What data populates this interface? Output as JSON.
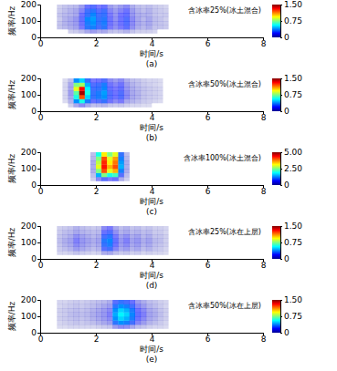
{
  "chart_data": [
    {
      "type": "heatmap",
      "annotation": "含冰率25%(冰土混合)",
      "label": "(a)",
      "xlabel": "时间/s",
      "ylabel": "频率/Hz",
      "xlim": [
        0,
        8
      ],
      "xticks": [
        0,
        2,
        4,
        6,
        8
      ],
      "ylim": [
        0,
        200
      ],
      "yticks": [
        0,
        100,
        200
      ],
      "x": [
        0.7,
        0.9,
        1.1,
        1.3,
        1.5,
        1.7,
        1.9,
        2.1,
        2.3,
        2.5,
        2.7,
        2.9,
        3.1,
        3.3,
        3.5,
        3.7,
        3.9,
        4.1,
        4.3,
        4.5
      ],
      "y": [
        37.5,
        62.5,
        87.5,
        112.5,
        137.5,
        162.5,
        187.5
      ],
      "z": [
        [
          0,
          0,
          0.03,
          0.04,
          0.06,
          0.1,
          0.12,
          0.09,
          0.1,
          0.06,
          0.05,
          0.06,
          0.08,
          0.05,
          0.03,
          0.03,
          0.03,
          0.02,
          0,
          0
        ],
        [
          0.05,
          0.07,
          0.09,
          0.11,
          0.18,
          0.32,
          0.36,
          0.27,
          0.32,
          0.18,
          0.14,
          0.18,
          0.23,
          0.14,
          0.09,
          0.07,
          0.09,
          0.05,
          0.05,
          0.04
        ],
        [
          0.05,
          0.08,
          0.1,
          0.12,
          0.2,
          0.35,
          0.4,
          0.3,
          0.35,
          0.2,
          0.15,
          0.2,
          0.25,
          0.15,
          0.1,
          0.08,
          0.1,
          0.06,
          0.05,
          0.04
        ],
        [
          0.04,
          0.08,
          0.1,
          0.13,
          0.22,
          0.38,
          0.42,
          0.3,
          0.33,
          0.2,
          0.14,
          0.2,
          0.25,
          0.15,
          0.1,
          0.07,
          0.1,
          0.06,
          0.05,
          0.03
        ],
        [
          0.05,
          0.07,
          0.08,
          0.1,
          0.2,
          0.3,
          0.38,
          0.28,
          0.3,
          0.18,
          0.13,
          0.19,
          0.22,
          0.13,
          0.09,
          0.08,
          0.08,
          0.05,
          0.04,
          0.04
        ],
        [
          0.04,
          0.06,
          0.08,
          0.1,
          0.16,
          0.28,
          0.32,
          0.24,
          0.28,
          0.16,
          0.12,
          0.16,
          0.2,
          0.12,
          0.08,
          0.06,
          0.08,
          0.05,
          0.04,
          0.03
        ],
        [
          0.03,
          0.05,
          0.06,
          0.07,
          0.12,
          0.21,
          0.24,
          0.18,
          0.21,
          0.12,
          0.09,
          0.12,
          0.15,
          0.09,
          0.06,
          0.05,
          0.06,
          0.04,
          0.03,
          0.02
        ]
      ],
      "colorbar_range": [
        0,
        1.5
      ],
      "colorbar_ticks": [
        0,
        0.75,
        {
          "value": 1.5,
          "label": "1.50"
        }
      ]
    },
    {
      "type": "heatmap",
      "annotation": "含冰率50%(冰土混合)",
      "label": "(b)",
      "xlabel": "时间/s",
      "ylabel": "频率/Hz",
      "xlim": [
        0,
        8
      ],
      "xticks": [
        0,
        2,
        4,
        6,
        8
      ],
      "ylim": [
        0,
        200
      ],
      "yticks": [
        0,
        100,
        200
      ],
      "x": [
        0.7,
        0.9,
        1.1,
        1.3,
        1.5,
        1.7,
        1.9,
        2.1,
        2.3,
        2.5,
        2.7,
        2.9,
        3.1,
        3.3,
        3.5,
        3.7,
        3.9,
        4.1,
        4.3,
        4.5
      ],
      "y": [
        37.5,
        62.5,
        87.5,
        112.5,
        137.5,
        162.5,
        187.5
      ],
      "z": [
        [
          0,
          0,
          0.03,
          0.1,
          0.15,
          0.1,
          0.06,
          0.07,
          0.08,
          0.05,
          0.04,
          0.05,
          0.03,
          0.02,
          0.02,
          0.01,
          0.01,
          0,
          0,
          0
        ],
        [
          0,
          0.01,
          0.08,
          0.4,
          0.6,
          0.35,
          0.22,
          0.25,
          0.3,
          0.2,
          0.15,
          0.18,
          0.1,
          0.08,
          0.06,
          0.04,
          0.03,
          0.02,
          0.01,
          0
        ],
        [
          0,
          0.02,
          0.1,
          0.6,
          1.2,
          0.5,
          0.3,
          0.35,
          0.4,
          0.25,
          0.2,
          0.25,
          0.15,
          0.1,
          0.08,
          0.05,
          0.04,
          0.03,
          0.02,
          0
        ],
        [
          0,
          0.02,
          0.12,
          0.7,
          1.45,
          0.6,
          0.3,
          0.35,
          0.42,
          0.25,
          0.2,
          0.25,
          0.15,
          0.1,
          0.08,
          0.05,
          0.04,
          0.03,
          0.02,
          0
        ],
        [
          0,
          0.02,
          0.1,
          0.9,
          1.3,
          0.55,
          0.28,
          0.3,
          0.38,
          0.22,
          0.18,
          0.22,
          0.13,
          0.09,
          0.07,
          0.05,
          0.04,
          0.03,
          0.02,
          0
        ],
        [
          0,
          0.02,
          0.1,
          0.75,
          0.8,
          0.45,
          0.25,
          0.28,
          0.35,
          0.2,
          0.16,
          0.2,
          0.12,
          0.08,
          0.06,
          0.04,
          0.03,
          0.02,
          0.01,
          0
        ],
        [
          0,
          0.01,
          0.06,
          0.4,
          0.5,
          0.3,
          0.18,
          0.2,
          0.25,
          0.15,
          0.12,
          0.15,
          0.09,
          0.06,
          0.05,
          0.03,
          0.02,
          0.02,
          0.01,
          0
        ]
      ],
      "colorbar_range": [
        0,
        1.5
      ],
      "colorbar_ticks": [
        0,
        0.75,
        {
          "value": 1.5,
          "label": "1.50"
        }
      ]
    },
    {
      "type": "heatmap",
      "annotation": "含冰率100%(冰土混合)",
      "label": "(c)",
      "xlabel": "时间/s",
      "ylabel": "频率/Hz",
      "xlim": [
        0,
        8
      ],
      "xticks": [
        0,
        2,
        4,
        6,
        8
      ],
      "ylim": [
        0,
        200
      ],
      "yticks": [
        0,
        100,
        200
      ],
      "x": [
        0.7,
        0.9,
        1.1,
        1.3,
        1.5,
        1.7,
        1.9,
        2.1,
        2.3,
        2.5,
        2.7,
        2.9,
        3.1,
        3.3,
        3.5,
        3.7,
        3.9,
        4.1,
        4.3,
        4.5
      ],
      "y": [
        37.5,
        62.5,
        87.5,
        112.5,
        137.5,
        162.5,
        187.5
      ],
      "z": [
        [
          0,
          0,
          0,
          0,
          0,
          0,
          0.1,
          0.5,
          0.8,
          0.6,
          0.7,
          0.3,
          0.1,
          0,
          0,
          0,
          0,
          0,
          0,
          0
        ],
        [
          0,
          0,
          0,
          0,
          0,
          0,
          0.2,
          1.5,
          2.5,
          2.0,
          2.2,
          0.8,
          0.2,
          0,
          0,
          0,
          0,
          0,
          0,
          0
        ],
        [
          0,
          0,
          0,
          0,
          0,
          0,
          0.3,
          2.5,
          4.0,
          3.0,
          3.5,
          1.2,
          0.3,
          0,
          0,
          0,
          0,
          0,
          0,
          0
        ],
        [
          0,
          0,
          0,
          0,
          0,
          0,
          0.3,
          3.0,
          4.3,
          3.5,
          4.0,
          1.5,
          0.3,
          0,
          0,
          0,
          0,
          0,
          0,
          0
        ],
        [
          0,
          0,
          0,
          0,
          0,
          0,
          0.3,
          2.8,
          4.2,
          3.2,
          3.8,
          1.4,
          0.3,
          0,
          0,
          0,
          0,
          0,
          0,
          0
        ],
        [
          0,
          0,
          0,
          0,
          0,
          0,
          0.25,
          2.5,
          4.0,
          3.0,
          3.6,
          1.2,
          0.25,
          0,
          0,
          0,
          0,
          0,
          0,
          0
        ],
        [
          0,
          0,
          0,
          0,
          0,
          0,
          0.2,
          2.0,
          3.2,
          2.5,
          3.0,
          1.0,
          0.2,
          0,
          0,
          0,
          0,
          0,
          0,
          0
        ]
      ],
      "colorbar_range": [
        0,
        5
      ],
      "colorbar_ticks": [
        0,
        {
          "value": 2.5,
          "label": "2.50"
        },
        {
          "value": 5,
          "label": "5.00"
        }
      ]
    },
    {
      "type": "heatmap",
      "annotation": "含冰率25%(冰在上层)",
      "label": "(d)",
      "xlabel": "时间/s",
      "ylabel": "频率/Hz",
      "xlim": [
        0,
        8
      ],
      "xticks": [
        0,
        2,
        4,
        6,
        8
      ],
      "ylim": [
        0,
        200
      ],
      "yticks": [
        0,
        100,
        200
      ],
      "x": [
        0.7,
        0.9,
        1.1,
        1.3,
        1.5,
        1.7,
        1.9,
        2.1,
        2.3,
        2.5,
        2.7,
        2.9,
        3.1,
        3.3,
        3.5,
        3.7,
        3.9,
        4.1,
        4.3,
        4.5
      ],
      "y": [
        37.5,
        62.5,
        87.5,
        112.5,
        137.5,
        162.5,
        187.5
      ],
      "z": [
        [
          0.02,
          0.02,
          0.03,
          0.05,
          0.04,
          0.03,
          0.02,
          0.03,
          0.09,
          0.1,
          0.06,
          0.04,
          0.05,
          0.03,
          0.04,
          0.02,
          0.03,
          0.02,
          0.02,
          0.01
        ],
        [
          0.04,
          0.06,
          0.08,
          0.12,
          0.1,
          0.08,
          0.06,
          0.08,
          0.24,
          0.28,
          0.16,
          0.1,
          0.12,
          0.08,
          0.1,
          0.06,
          0.08,
          0.05,
          0.04,
          0.02
        ],
        [
          0.05,
          0.08,
          0.1,
          0.15,
          0.12,
          0.1,
          0.08,
          0.1,
          0.3,
          0.35,
          0.2,
          0.12,
          0.15,
          0.1,
          0.12,
          0.08,
          0.1,
          0.06,
          0.05,
          0.03
        ],
        [
          0.06,
          0.09,
          0.11,
          0.17,
          0.13,
          0.11,
          0.09,
          0.11,
          0.33,
          0.38,
          0.22,
          0.13,
          0.17,
          0.11,
          0.13,
          0.09,
          0.11,
          0.07,
          0.06,
          0.03
        ],
        [
          0.05,
          0.07,
          0.09,
          0.14,
          0.11,
          0.09,
          0.07,
          0.09,
          0.27,
          0.32,
          0.18,
          0.11,
          0.14,
          0.09,
          0.11,
          0.07,
          0.09,
          0.05,
          0.05,
          0.03
        ],
        [
          0.04,
          0.06,
          0.07,
          0.1,
          0.08,
          0.07,
          0.06,
          0.07,
          0.21,
          0.25,
          0.14,
          0.08,
          0.1,
          0.07,
          0.08,
          0.06,
          0.07,
          0.04,
          0.04,
          0.02
        ],
        [
          0.03,
          0.04,
          0.05,
          0.08,
          0.06,
          0.05,
          0.04,
          0.05,
          0.15,
          0.18,
          0.1,
          0.06,
          0.08,
          0.05,
          0.06,
          0.04,
          0.05,
          0.03,
          0.03,
          0.02
        ]
      ],
      "colorbar_range": [
        0,
        1.5
      ],
      "colorbar_ticks": [
        0,
        0.75,
        {
          "value": 1.5,
          "label": "1.50"
        }
      ]
    },
    {
      "type": "heatmap",
      "annotation": "含冰率50%(冰在上层)",
      "label": "(e)",
      "xlabel": "时间/s",
      "ylabel": "频率/Hz",
      "xlim": [
        0,
        8
      ],
      "xticks": [
        0,
        2,
        4,
        6,
        8
      ],
      "ylim": [
        0,
        200
      ],
      "yticks": [
        0,
        100,
        200
      ],
      "x": [
        0.7,
        0.9,
        1.1,
        1.3,
        1.5,
        1.7,
        1.9,
        2.1,
        2.3,
        2.5,
        2.7,
        2.9,
        3.1,
        3.3,
        3.5,
        3.7,
        3.9,
        4.1,
        4.3,
        4.5
      ],
      "y": [
        37.5,
        62.5,
        87.5,
        112.5,
        137.5,
        162.5,
        187.5
      ],
      "z": [
        [
          0.01,
          0.01,
          0.02,
          0.02,
          0.02,
          0.02,
          0.02,
          0.03,
          0.04,
          0.05,
          0.12,
          0.15,
          0.14,
          0.1,
          0.06,
          0.05,
          0.03,
          0.02,
          0.02,
          0.01
        ],
        [
          0.02,
          0.03,
          0.04,
          0.05,
          0.04,
          0.05,
          0.06,
          0.08,
          0.1,
          0.12,
          0.32,
          0.4,
          0.36,
          0.28,
          0.16,
          0.12,
          0.08,
          0.06,
          0.04,
          0.02
        ],
        [
          0.03,
          0.04,
          0.05,
          0.06,
          0.05,
          0.06,
          0.08,
          0.1,
          0.12,
          0.15,
          0.4,
          0.5,
          0.45,
          0.35,
          0.2,
          0.15,
          0.1,
          0.08,
          0.05,
          0.03
        ],
        [
          0.03,
          0.04,
          0.06,
          0.07,
          0.06,
          0.07,
          0.09,
          0.11,
          0.13,
          0.17,
          0.44,
          0.55,
          0.5,
          0.38,
          0.22,
          0.17,
          0.11,
          0.09,
          0.06,
          0.03
        ],
        [
          0.03,
          0.04,
          0.05,
          0.06,
          0.05,
          0.06,
          0.08,
          0.1,
          0.12,
          0.15,
          0.4,
          0.5,
          0.45,
          0.35,
          0.2,
          0.15,
          0.1,
          0.08,
          0.05,
          0.03
        ],
        [
          0.02,
          0.03,
          0.04,
          0.05,
          0.04,
          0.05,
          0.06,
          0.08,
          0.1,
          0.12,
          0.32,
          0.4,
          0.36,
          0.28,
          0.16,
          0.12,
          0.08,
          0.06,
          0.04,
          0.02
        ],
        [
          0.02,
          0.02,
          0.03,
          0.04,
          0.03,
          0.04,
          0.05,
          0.06,
          0.07,
          0.09,
          0.24,
          0.3,
          0.27,
          0.21,
          0.12,
          0.09,
          0.06,
          0.05,
          0.03,
          0.02
        ]
      ],
      "colorbar_range": [
        0,
        1.5
      ],
      "colorbar_ticks": [
        0,
        0.75,
        {
          "value": 1.5,
          "label": "1.50"
        }
      ]
    }
  ]
}
